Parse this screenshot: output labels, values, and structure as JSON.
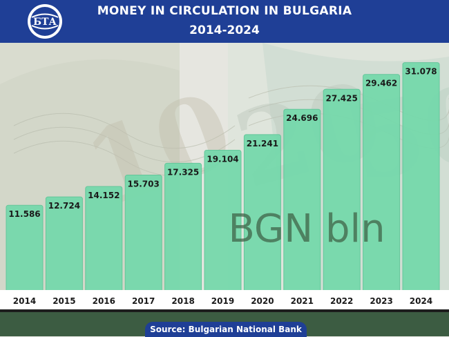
{
  "header": {
    "logo_text": "БТА",
    "title": "MONEY IN CIRCULATION IN BULGARIA",
    "subtitle": "2014-2024"
  },
  "footer": {
    "source": "Source: Bulgarian National Bank"
  },
  "colors": {
    "header_bg": "#1f3f96",
    "bar": "#74d9ab",
    "bar_edge": "#5cc597",
    "unit_text": "#3c5c42",
    "axis_band": "#ffffff"
  },
  "chart_data": {
    "type": "bar",
    "title": "MONEY IN CIRCULATION IN BULGARIA",
    "subtitle": "2014-2024",
    "unit_label": "BGN bln",
    "categories": [
      "2014",
      "2015",
      "2016",
      "2017",
      "2018",
      "2019",
      "2020",
      "2021",
      "2022",
      "2023",
      "2024"
    ],
    "values": [
      11.586,
      12.724,
      14.152,
      15.703,
      17.325,
      19.104,
      21.241,
      24.696,
      27.425,
      29.462,
      31.078
    ],
    "value_labels": [
      "11.586",
      "12.724",
      "14.152",
      "15.703",
      "17.325",
      "19.104",
      "21.241",
      "24.696",
      "27.425",
      "29.462",
      "31.078"
    ],
    "ylim": [
      0,
      33
    ],
    "grid": false,
    "legend": "none"
  }
}
